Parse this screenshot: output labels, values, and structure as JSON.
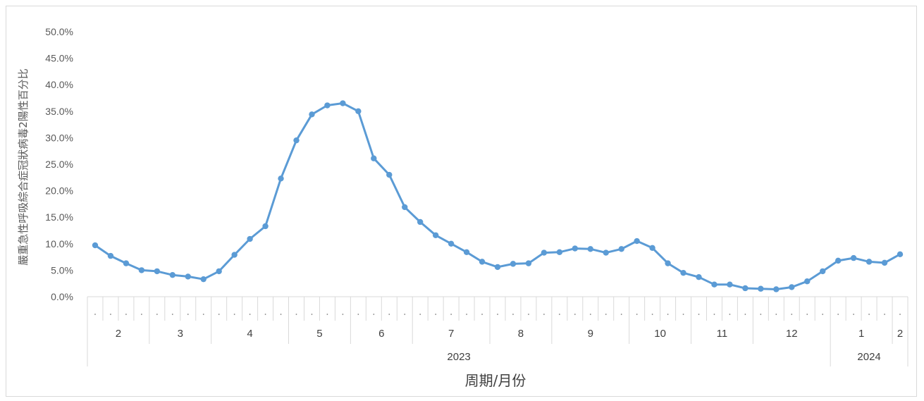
{
  "chart_data": {
    "type": "line",
    "ylabel": "嚴重急性呼吸綜合症冠狀病毒2陽性百分比",
    "xlabel": "周期/月份",
    "ylim": [
      0,
      50
    ],
    "yticks": [
      "0.0%",
      "5.0%",
      "10.0%",
      "15.0%",
      "20.0%",
      "25.0%",
      "30.0%",
      "35.0%",
      "40.0%",
      "45.0%",
      "50.0%"
    ],
    "grid": false,
    "color": "#5B9BD5",
    "weeks_per_month": [
      4,
      4,
      5,
      4,
      4,
      5,
      4,
      5,
      4,
      4,
      5,
      4,
      1
    ],
    "months": [
      "2",
      "3",
      "4",
      "5",
      "6",
      "7",
      "8",
      "9",
      "10",
      "11",
      "12",
      "1",
      "2"
    ],
    "years": [
      {
        "label": "2023",
        "months": 11
      },
      {
        "label": "2024",
        "months": 2
      }
    ],
    "series": [
      {
        "values": [
          9.7,
          7.7,
          6.3,
          5.0,
          4.8,
          4.1,
          3.8,
          3.3,
          4.8,
          7.9,
          10.9,
          13.3,
          22.3,
          29.5,
          34.4,
          36.1,
          36.5,
          35.0,
          26.1,
          23.0,
          16.9,
          14.1,
          11.6,
          10.0,
          8.4,
          6.6,
          5.6,
          6.2,
          6.3,
          8.3,
          8.4,
          9.1,
          9.0,
          8.3,
          9.0,
          10.5,
          9.2,
          6.3,
          4.5,
          3.7,
          2.3,
          2.3,
          1.6,
          1.5,
          1.4,
          1.8,
          2.9,
          4.8,
          6.8,
          7.3,
          6.6,
          6.4,
          8.0
        ]
      }
    ]
  }
}
